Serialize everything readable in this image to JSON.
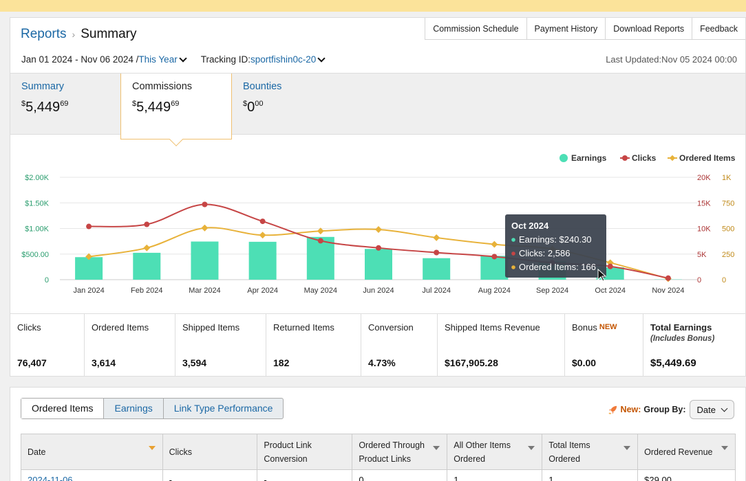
{
  "breadcrumb": {
    "parent": "Reports",
    "separator": "›",
    "current": "Summary"
  },
  "top_buttons": [
    "Commission Schedule",
    "Payment History",
    "Download Reports",
    "Feedback"
  ],
  "date_range": {
    "range": "Jan 01 2024 - Nov 06 2024",
    "slash": "/",
    "period": "This Year"
  },
  "tracking": {
    "label": "Tracking ID:",
    "value": "sportfishin0c-20"
  },
  "last_updated": "Last Updated:Nov 05 2024 00:00",
  "summary_tabs": [
    {
      "label": "Summary",
      "dollars": "5,449",
      "cents": "69",
      "currency": "$"
    },
    {
      "label": "Commissions",
      "dollars": "5,449",
      "cents": "69",
      "currency": "$"
    },
    {
      "label": "Bounties",
      "dollars": "0",
      "cents": "00",
      "currency": "$"
    }
  ],
  "colors": {
    "earnings": "#4ddfb5",
    "clicks": "#c64545",
    "ordered": "#e8b23a",
    "link": "#1b68a5"
  },
  "chart_data": {
    "type": "bar",
    "categories": [
      "Jan 2024",
      "Feb 2024",
      "Mar 2024",
      "Apr 2024",
      "May 2024",
      "Jun 2024",
      "Jul 2024",
      "Aug 2024",
      "Sep 2024",
      "Oct 2024",
      "Nov 2024"
    ],
    "series": [
      {
        "name": "Earnings",
        "type": "bar",
        "axis": "left",
        "values": [
          440,
          525,
          745,
          740,
          835,
          600,
          420,
          465,
          360,
          240.3,
          5
        ]
      },
      {
        "name": "Clicks",
        "type": "line",
        "axis": "right1",
        "values": [
          10400,
          10800,
          14700,
          11400,
          7600,
          6200,
          5300,
          4500,
          3300,
          2586,
          300
        ]
      },
      {
        "name": "Ordered Items",
        "type": "line",
        "axis": "right2",
        "values": [
          225,
          310,
          505,
          435,
          475,
          490,
          410,
          345,
          300,
          166,
          10
        ]
      }
    ],
    "left_axis": {
      "ticks": [
        "0",
        "$500.00",
        "$1.00K",
        "$1.50K",
        "$2.00K"
      ],
      "max": 2000
    },
    "right1_axis": {
      "ticks": [
        "0",
        "5K",
        "10K",
        "15K",
        "20K"
      ],
      "max": 20000
    },
    "right2_axis": {
      "ticks": [
        "0",
        "250",
        "500",
        "750",
        "1K"
      ],
      "max": 1000
    },
    "legend": [
      "Earnings",
      "Clicks",
      "Ordered Items"
    ],
    "legend_position": "top-right",
    "grid": true,
    "tooltip": {
      "title": "Oct 2024",
      "lines": [
        "Earnings: $240.30",
        "Clicks: 2,586",
        "Ordered Items: 166"
      ]
    }
  },
  "metrics": [
    {
      "label": "Clicks",
      "value": "76,407"
    },
    {
      "label": "Ordered Items",
      "value": "3,614"
    },
    {
      "label": "Shipped Items",
      "value": "3,594"
    },
    {
      "label": "Returned Items",
      "value": "182"
    },
    {
      "label": "Conversion",
      "value": "4.73%"
    },
    {
      "label": "Shipped Items Revenue",
      "value": "$167,905.28"
    },
    {
      "label": "Bonus",
      "badge": "NEW",
      "value": "$0.00"
    },
    {
      "label": "Total Earnings",
      "sub": "(Includes Bonus)",
      "value": "$5,449.69"
    }
  ],
  "report_tabs": [
    "Ordered Items",
    "Earnings",
    "Link Type Performance"
  ],
  "group_by": {
    "new_label": "New:",
    "label": "Group By:",
    "value": "Date"
  },
  "table": {
    "headers": [
      {
        "label": "Date",
        "sort": "active"
      },
      {
        "label": "Clicks",
        "sort": "none"
      },
      {
        "label": "Product Link Conversion",
        "sort": "none"
      },
      {
        "label": "Ordered Through Product Links",
        "sort": "down"
      },
      {
        "label": "All Other Items Ordered",
        "sort": "down"
      },
      {
        "label": "Total Items Ordered",
        "sort": "down"
      },
      {
        "label": "Ordered Revenue",
        "sort": "down"
      }
    ],
    "rows": [
      [
        "2024-11-06",
        "-",
        "-",
        "0",
        "1",
        "1",
        "$29.00"
      ]
    ]
  }
}
